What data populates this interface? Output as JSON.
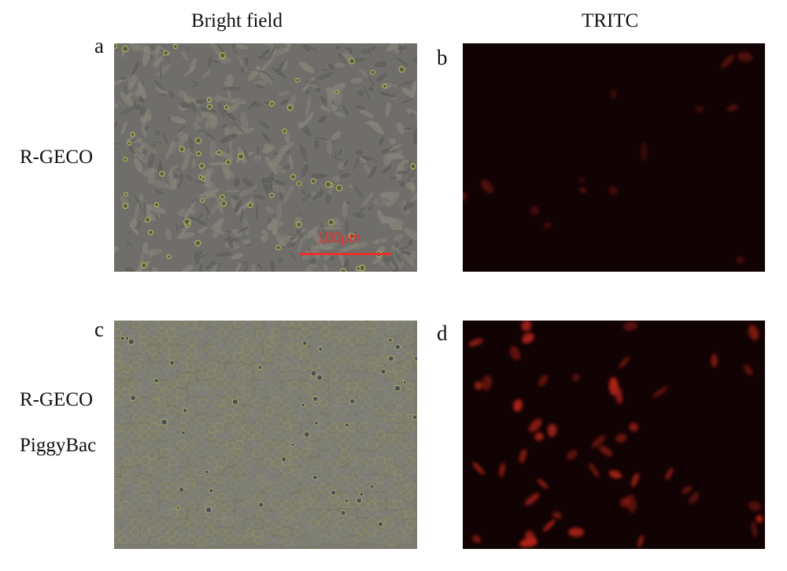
{
  "figure": {
    "column_titles": [
      "Bright field",
      "TRITC"
    ],
    "panel_letters": [
      "a",
      "b",
      "c",
      "d"
    ],
    "row_labels": {
      "row1": "R-GECO",
      "row2_line1": "R-GECO",
      "row2_line2": "PiggyBac"
    },
    "scale_bar": {
      "label": "100μm",
      "color": "#e8302f"
    },
    "colors": {
      "bright_field_bg": "#6f6e6a",
      "bright_field_cell": "#858377",
      "bright_field_round_cell": "#bcc35a",
      "bright_field_c_bg": "#7b7a6d",
      "tritc_bg": "#110203",
      "tritc_cell": "#b82518"
    }
  }
}
